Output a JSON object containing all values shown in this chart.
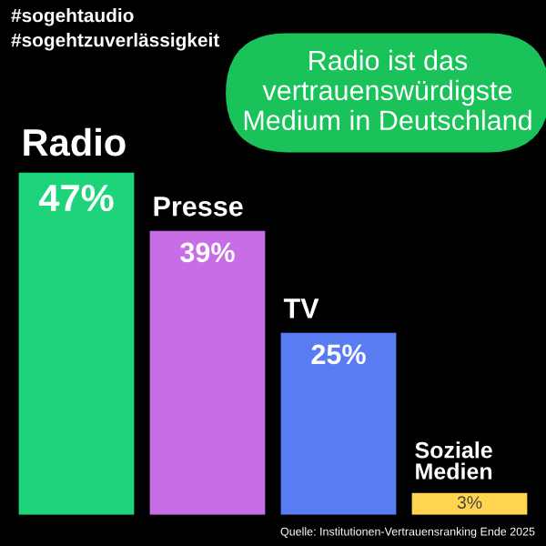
{
  "chart_data": {
    "type": "bar",
    "title": "Radio ist das vertrauenswürdigste Medium in Deutschland",
    "categories": [
      "Radio",
      "Presse",
      "TV",
      "Soziale\nMedien"
    ],
    "values": [
      47,
      39,
      25,
      3
    ],
    "colors": [
      "#1ed47a",
      "#c76de6",
      "#5a7cf2",
      "#ffd54f"
    ],
    "value_labels": [
      "47%",
      "39%",
      "25%",
      "3%"
    ],
    "annotations": [
      "#sogehtaudio\n#sogehtzuverlässigkeit",
      "Quelle: Institutionen-Vertrauensranking Ende 2025"
    ]
  }
}
